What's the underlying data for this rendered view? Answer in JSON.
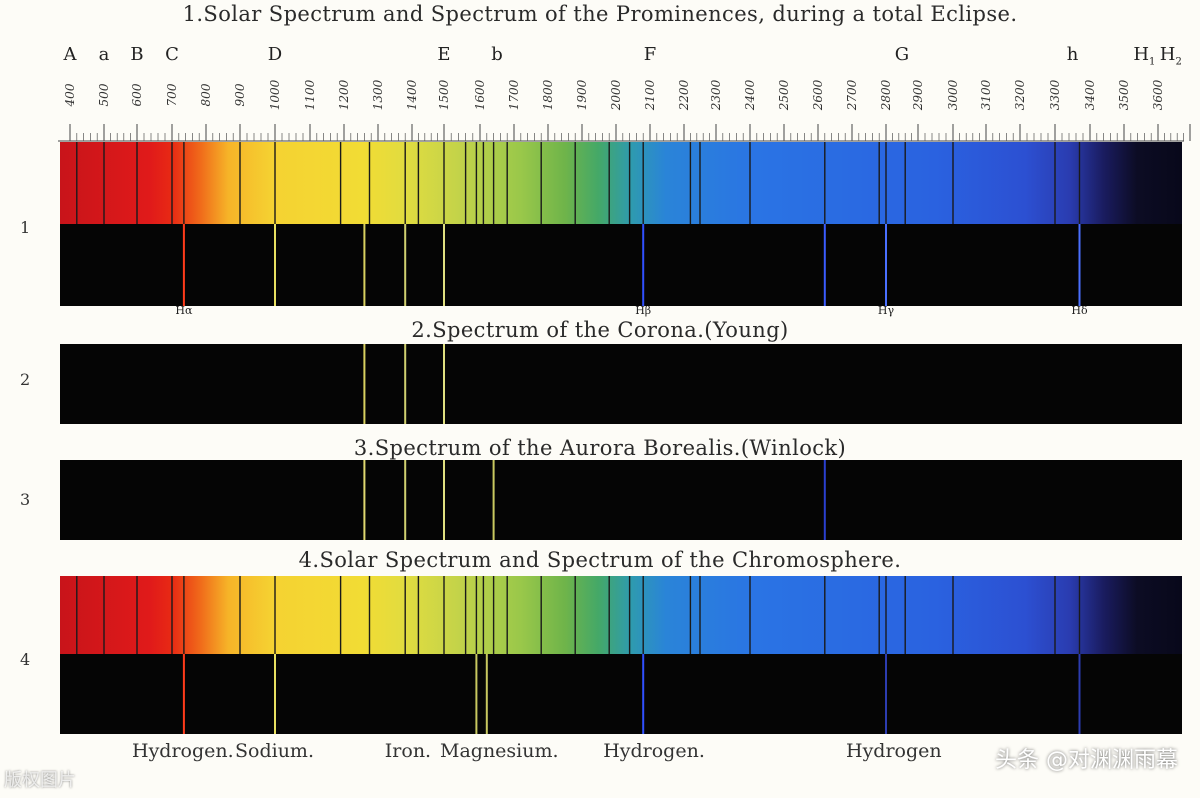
{
  "titles": {
    "t1": "1.Solar Spectrum and Spectrum of the Prominences, during a total Eclipse.",
    "t2": "2.Spectrum of the Corona.(Young)",
    "t3": "3.Spectrum of the Aurora Borealis.(Winlock)",
    "t4": "4.Solar Spectrum and Spectrum of the Chromosphere."
  },
  "row_numbers": [
    "1",
    "2",
    "3",
    "4"
  ],
  "fraunhofer_letters": [
    {
      "text": "A",
      "scale": 400
    },
    {
      "text": "a",
      "scale": 500
    },
    {
      "text": "B",
      "scale": 600
    },
    {
      "text": "C",
      "scale": 700
    },
    {
      "text": "D",
      "scale": 1000
    },
    {
      "text": "E",
      "scale": 1500
    },
    {
      "text": "b",
      "scale": 1650
    },
    {
      "text": "F",
      "scale": 2100
    },
    {
      "text": "G",
      "scale": 2850
    },
    {
      "text": "h",
      "scale": 3350
    },
    {
      "text": "H",
      "sub": "1",
      "scale": 3560
    },
    {
      "text": "H",
      "sub": "2",
      "scale": 3640
    }
  ],
  "scale_numbers": [
    "400",
    "500",
    "600",
    "700",
    "800",
    "900",
    "1000",
    "1100",
    "1200",
    "1300",
    "1400",
    "1500",
    "1600",
    "1700",
    "1800",
    "1900",
    "2000",
    "2100",
    "2200",
    "2300",
    "2400",
    "2500",
    "2600",
    "2700",
    "2800",
    "2900",
    "3000",
    "3100",
    "3200",
    "3300",
    "3400",
    "3500",
    "3600"
  ],
  "hydrogen_labels": [
    {
      "text": "Hα",
      "scale": 735
    },
    {
      "text": "Hβ",
      "scale": 2080
    },
    {
      "text": "Hγ",
      "scale": 2800
    },
    {
      "text": "Hδ",
      "scale": 3370
    }
  ],
  "bottom_labels": [
    {
      "text": "Hydrogen.",
      "scale": 700
    },
    {
      "text": "Sodium.",
      "scale": 1000
    },
    {
      "text": "Iron.",
      "scale": 1440
    },
    {
      "text": "Magnesium.",
      "scale": 1600
    },
    {
      "text": "Hydrogen.",
      "scale": 2080
    },
    {
      "text": "Hydrogen",
      "scale": 2800
    }
  ],
  "watermark": "头条 @对渊渊雨幕",
  "watermark_left": "版权图片",
  "emission_lines": {
    "row1": [
      {
        "scale": 735,
        "color": "#ff3b1a"
      },
      {
        "scale": 1000,
        "color": "#e8e060"
      },
      {
        "scale": 1260,
        "color": "#d8d060"
      },
      {
        "scale": 1380,
        "color": "#d0d070"
      },
      {
        "scale": 1500,
        "color": "#e0e080"
      },
      {
        "scale": 2080,
        "color": "#3050ff"
      },
      {
        "scale": 2620,
        "color": "#3a5cff"
      },
      {
        "scale": 2800,
        "color": "#4a70ff"
      },
      {
        "scale": 3370,
        "color": "#4a70ff"
      }
    ],
    "row2": [
      {
        "scale": 1260,
        "color": "#d8d060"
      },
      {
        "scale": 1380,
        "color": "#d0d070"
      },
      {
        "scale": 1500,
        "color": "#e0e080"
      }
    ],
    "row3": [
      {
        "scale": 1260,
        "color": "#e0d870"
      },
      {
        "scale": 1380,
        "color": "#d0d070"
      },
      {
        "scale": 1500,
        "color": "#e0e080"
      },
      {
        "scale": 1640,
        "color": "#c8c860"
      },
      {
        "scale": 2620,
        "color": "#2a40d0"
      }
    ],
    "row4": [
      {
        "scale": 735,
        "color": "#ff3b1a"
      },
      {
        "scale": 1000,
        "color": "#e8e060"
      },
      {
        "scale": 1590,
        "color": "#c8c860"
      },
      {
        "scale": 1620,
        "color": "#c8c860"
      },
      {
        "scale": 2080,
        "color": "#3050ff"
      },
      {
        "scale": 2800,
        "color": "#2c3cb0"
      },
      {
        "scale": 3370,
        "color": "#2c3cb0"
      }
    ]
  },
  "absorption_lines": [
    420,
    500,
    600,
    700,
    735,
    900,
    1000,
    1190,
    1275,
    1380,
    1420,
    1500,
    1560,
    1590,
    1610,
    1640,
    1680,
    1780,
    1880,
    1980,
    2040,
    2080,
    2220,
    2250,
    2400,
    2620,
    2780,
    2800,
    2860,
    3000,
    3300,
    3370
  ]
}
